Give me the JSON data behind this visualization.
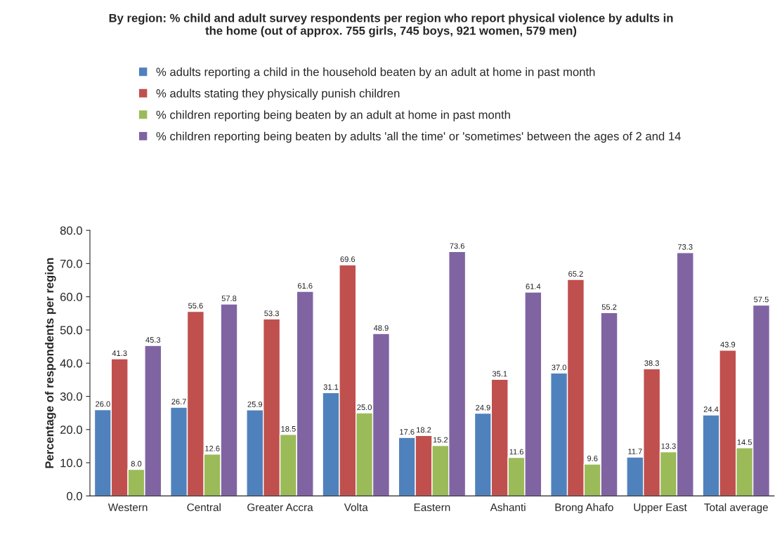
{
  "chart_data": {
    "type": "bar",
    "title": "By region: % child and adult survey respondents per region who report physical violence by adults in\nthe home (out of approx. 755 girls, 745 boys, 921 women, 579 men)",
    "ylabel": "Percentage of respondents per region",
    "categories": [
      "Western",
      "Central",
      "Greater Accra",
      "Volta",
      "Eastern",
      "Ashanti",
      "Brong Ahafo",
      "Upper East",
      "Total average"
    ],
    "series": [
      {
        "name": "% adults reporting a child in the household beaten by an adult at home in past month",
        "color": "#4f81bd",
        "values": [
          26.0,
          26.7,
          25.9,
          31.1,
          17.6,
          24.9,
          37.0,
          11.7,
          24.4
        ],
        "value_labels": [
          "26.0",
          "26.7",
          "25.9",
          "31.1",
          "17.6",
          "24.9",
          "37.0",
          "11.7",
          "24.4"
        ]
      },
      {
        "name": "% adults stating they physically punish children",
        "color": "#c0504d",
        "values": [
          41.3,
          55.6,
          53.3,
          69.6,
          18.2,
          35.1,
          65.2,
          38.3,
          43.9
        ],
        "value_labels": [
          "41.3",
          "55.6",
          "53.3",
          "69.6",
          "18.2",
          "35.1",
          "65.2",
          "38.3",
          "43.9"
        ]
      },
      {
        "name": "% children reporting being beaten by an adult at home in past month",
        "color": "#9bbb59",
        "values": [
          8.0,
          12.6,
          18.5,
          25.0,
          15.2,
          11.6,
          9.6,
          13.3,
          14.5
        ],
        "value_labels": [
          "8.0",
          "12.6",
          "18.5",
          "25.0",
          "15.2",
          "11.6",
          "9.6",
          "13.3",
          "14.5"
        ]
      },
      {
        "name": "% children reporting being beaten by adults 'all the time' or 'sometimes' between the ages of 2 and 14",
        "color": "#8064a2",
        "values": [
          45.3,
          57.8,
          61.6,
          48.9,
          73.6,
          61.4,
          55.2,
          73.3,
          57.5
        ],
        "value_labels": [
          "45.3",
          "57.8",
          "61.6",
          "48.9",
          "73.6",
          "61.4",
          "55.2",
          "73.3",
          "57.5"
        ]
      }
    ],
    "ylim": [
      0,
      80
    ],
    "yticks": [
      {
        "value": 0,
        "label": "0.0"
      },
      {
        "value": 10,
        "label": "10.0"
      },
      {
        "value": 20,
        "label": "20.0"
      },
      {
        "value": 30,
        "label": "30.0"
      },
      {
        "value": 40,
        "label": "40.0"
      },
      {
        "value": 50,
        "label": "50.0"
      },
      {
        "value": 60,
        "label": "60.0"
      },
      {
        "value": 70,
        "label": "70.0"
      },
      {
        "value": 80,
        "label": "80.0"
      }
    ],
    "grid": false,
    "legend": "top"
  }
}
